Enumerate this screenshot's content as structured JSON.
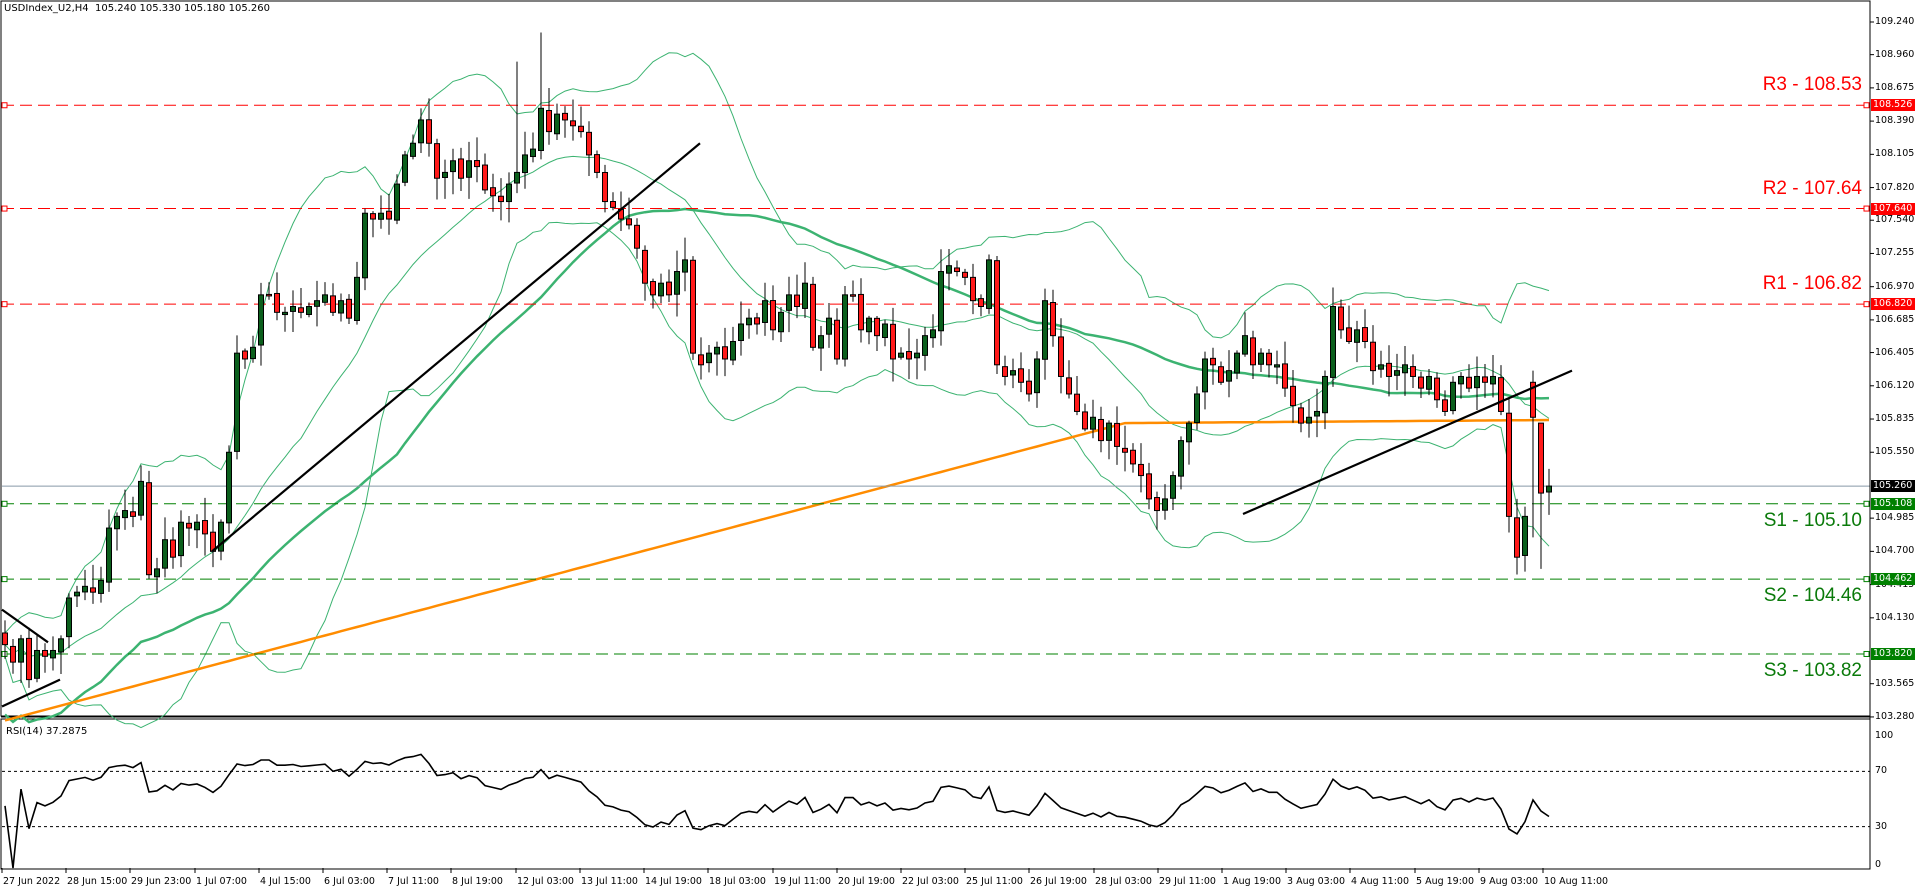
{
  "header": {
    "title": "USDIndex_U2,H4  105.240 105.330 105.180 105.260",
    "symbol": "USDIndex_U2",
    "timeframe": "H4",
    "ohlc": {
      "open": "105.240",
      "high": "105.330",
      "low": "105.180",
      "close": "105.260"
    }
  },
  "rsi": {
    "title": "RSI(14) 37.2875",
    "period": 14,
    "value": "37.2875",
    "levels": [
      70,
      30
    ],
    "ticks": [
      "100",
      "70",
      "30",
      "0"
    ]
  },
  "price_axis": {
    "ticks": [
      "109.240",
      "108.960",
      "108.675",
      "108.390",
      "108.105",
      "107.820",
      "107.540",
      "107.255",
      "106.970",
      "106.685",
      "106.405",
      "106.120",
      "105.835",
      "105.550",
      "104.985",
      "104.700",
      "104.415",
      "104.130",
      "103.565",
      "103.280"
    ],
    "current_price": "105.260"
  },
  "levels": [
    {
      "name": "R3",
      "label": "R3 - 108.53",
      "value": 108.526,
      "tag": "108.526",
      "type": "resistance",
      "color": "#ff0000"
    },
    {
      "name": "R2",
      "label": "R2 - 107.64",
      "value": 107.64,
      "tag": "107.640",
      "type": "resistance",
      "color": "#ff0000"
    },
    {
      "name": "R1",
      "label": "R1 - 106.82",
      "value": 106.82,
      "tag": "106.820",
      "type": "resistance",
      "color": "#ff0000"
    },
    {
      "name": "S1",
      "label": "S1 - 105.10",
      "value": 105.108,
      "tag": "105.108",
      "type": "support",
      "color": "#008000"
    },
    {
      "name": "S2",
      "label": "S2 - 104.46",
      "value": 104.462,
      "tag": "104.462",
      "type": "support",
      "color": "#008000"
    },
    {
      "name": "S3",
      "label": "S3 - 103.82",
      "value": 103.82,
      "tag": "103.820",
      "type": "support",
      "color": "#008000"
    }
  ],
  "time_axis": {
    "labels": [
      "27 Jun 2022",
      "28 Jun 15:00",
      "29 Jun 23:00",
      "1 Jul 07:00",
      "4 Jul 15:00",
      "6 Jul 03:00",
      "7 Jul 11:00",
      "8 Jul 19:00",
      "12 Jul 03:00",
      "13 Jul 11:00",
      "14 Jul 19:00",
      "18 Jul 03:00",
      "19 Jul 11:00",
      "20 Jul 19:00",
      "22 Jul 03:00",
      "25 Jul 11:00",
      "26 Jul 19:00",
      "28 Jul 03:00",
      "29 Jul 11:00",
      "1 Aug 19:00",
      "3 Aug 03:00",
      "4 Aug 11:00",
      "5 Aug 19:00",
      "9 Aug 03:00",
      "10 Aug 11:00"
    ]
  },
  "colors": {
    "bull": "#0b5f1c",
    "bear": "#ff1a1a",
    "ma_fast": "#3cb371",
    "ma_slow": "#ff8c00",
    "bands": "#3cb371",
    "trendline": "#000000",
    "resistance": "#ff0000",
    "support": "#008000",
    "current_price_line": "#8899a6"
  },
  "chart_data": [
    {
      "type": "candlestick",
      "title": "USDIndex_U2,H4",
      "xlabel": "",
      "ylabel": "",
      "ylim": [
        103.28,
        109.3
      ],
      "grid": false,
      "last_ohlc": {
        "open": 105.24,
        "high": 105.33,
        "low": 105.18,
        "close": 105.26
      },
      "x_tick_labels": [
        "27 Jun 2022",
        "28 Jun 15:00",
        "29 Jun 23:00",
        "1 Jul 07:00",
        "4 Jul 15:00",
        "6 Jul 03:00",
        "7 Jul 11:00",
        "8 Jul 19:00",
        "12 Jul 03:00",
        "13 Jul 11:00",
        "14 Jul 19:00",
        "18 Jul 03:00",
        "19 Jul 11:00",
        "20 Jul 19:00",
        "22 Jul 03:00",
        "25 Jul 11:00",
        "26 Jul 19:00",
        "28 Jul 03:00",
        "29 Jul 11:00",
        "1 Aug 19:00",
        "3 Aug 03:00",
        "4 Aug 11:00",
        "5 Aug 19:00",
        "9 Aug 03:00",
        "10 Aug 11:00"
      ],
      "horizontal_levels": [
        {
          "label": "R3",
          "value": 108.53
        },
        {
          "label": "R2",
          "value": 107.64
        },
        {
          "label": "R1",
          "value": 106.82
        },
        {
          "label": "S1",
          "value": 105.1
        },
        {
          "label": "S2",
          "value": 104.46
        },
        {
          "label": "S3",
          "value": 103.82
        }
      ],
      "closes": [
        103.9,
        103.75,
        103.95,
        103.6,
        103.85,
        103.8,
        103.85,
        103.95,
        104.3,
        104.35,
        104.4,
        104.35,
        104.45,
        104.9,
        105.0,
        105.05,
        105.0,
        105.3,
        104.5,
        104.55,
        104.8,
        104.65,
        104.95,
        104.9,
        104.95,
        104.85,
        104.7,
        104.95,
        105.55,
        106.4,
        106.35,
        106.45,
        106.9,
        106.9,
        106.75,
        106.75,
        106.8,
        106.75,
        106.8,
        106.85,
        106.9,
        106.75,
        106.85,
        106.7,
        107.05,
        107.6,
        107.55,
        107.6,
        107.55,
        107.85,
        108.1,
        108.2,
        108.4,
        108.2,
        107.9,
        107.95,
        108.05,
        107.9,
        108.05,
        108.0,
        107.8,
        107.75,
        107.7,
        107.85,
        107.95,
        108.1,
        108.15,
        108.5,
        108.3,
        108.45,
        108.4,
        108.35,
        108.3,
        108.1,
        107.95,
        107.7,
        107.65,
        107.55,
        107.5,
        107.3,
        107.0,
        106.9,
        107.0,
        106.9,
        107.1,
        107.2,
        106.4,
        106.3,
        106.4,
        106.45,
        106.35,
        106.5,
        106.65,
        106.7,
        106.65,
        106.85,
        106.6,
        106.75,
        106.9,
        106.8,
        107.0,
        106.45,
        106.55,
        106.7,
        106.35,
        106.9,
        106.9,
        106.6,
        106.7,
        106.55,
        106.65,
        106.35,
        106.4,
        106.35,
        106.4,
        106.55,
        106.6,
        107.1,
        107.15,
        107.1,
        107.05,
        106.85,
        106.8,
        107.2,
        106.3,
        106.2,
        106.25,
        106.15,
        106.05,
        106.35,
        106.85,
        106.55,
        106.2,
        106.05,
        105.9,
        105.75,
        105.85,
        105.65,
        105.8,
        105.6,
        105.55,
        105.45,
        105.35,
        105.15,
        105.05,
        105.15,
        105.35,
        105.65,
        105.8,
        106.05,
        106.35,
        106.3,
        106.15,
        106.25,
        106.4,
        106.55,
        106.3,
        106.4,
        106.3,
        106.3,
        106.1,
        105.95,
        105.8,
        105.85,
        105.9,
        106.2,
        106.8,
        106.6,
        106.5,
        106.6,
        106.5,
        106.25,
        106.3,
        106.2,
        106.25,
        106.3,
        106.2,
        106.1,
        106.2,
        106.0,
        105.9,
        106.15,
        106.2,
        106.1,
        106.2,
        106.15,
        106.2,
        105.9,
        105.0,
        104.65,
        105.0,
        105.1,
        105.2,
        105.26
      ],
      "series": [
        {
          "name": "RSI(14)",
          "pane": "lower",
          "ylim": [
            0,
            100
          ],
          "levels": [
            30,
            70
          ],
          "last_value": 37.2875
        }
      ],
      "trendlines": [
        {
          "from": [
            "27 Jun 2022",
            103.4
          ],
          "to": [
            "28 Jun 15:00",
            103.6
          ]
        },
        {
          "from": [
            "27 Jun 2022",
            104.2
          ],
          "to": [
            "28 Jun 15:00",
            103.9
          ]
        },
        {
          "from": [
            "4 Jul 15:00",
            104.7
          ],
          "to": [
            "14 Jul 19:00",
            108.2
          ]
        },
        {
          "from": [
            "1 Aug 19:00",
            105.0
          ],
          "to": [
            "10 Aug 11:00",
            106.25
          ]
        }
      ],
      "overlays": [
        "Moving average (fast, green)",
        "Moving average (slow, orange)",
        "Bollinger Bands (green thin)"
      ]
    }
  ]
}
